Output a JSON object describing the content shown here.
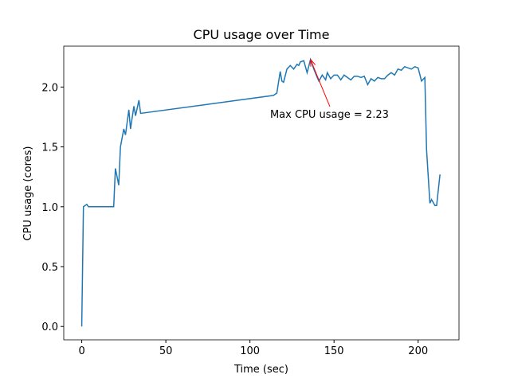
{
  "chart_data": {
    "type": "line",
    "title": "CPU usage over Time",
    "x_label": "Time (sec)",
    "y_label": "CPU usage (cores)",
    "x": [
      0,
      1,
      3,
      4,
      6,
      8,
      10,
      12,
      14,
      16,
      18,
      19,
      20,
      22,
      23,
      25,
      26,
      28,
      29,
      31,
      32,
      34,
      35,
      114,
      116,
      118,
      119,
      120,
      122,
      124,
      126,
      128,
      129,
      130,
      132,
      134,
      136,
      138,
      140,
      141,
      143,
      145,
      146,
      148,
      150,
      152,
      154,
      156,
      158,
      160,
      162,
      164,
      166,
      168,
      170,
      172,
      174,
      176,
      178,
      180,
      182,
      184,
      186,
      188,
      190,
      192,
      194,
      196,
      198,
      200,
      202,
      204,
      205,
      207,
      208,
      210,
      211,
      213
    ],
    "series": [
      {
        "color": "#1f77b4",
        "values": [
          0.0,
          1.0,
          1.02,
          1.0,
          1.0,
          1.0,
          1.0,
          1.0,
          1.0,
          1.0,
          1.0,
          1.0,
          1.32,
          1.18,
          1.5,
          1.65,
          1.6,
          1.81,
          1.65,
          1.84,
          1.76,
          1.89,
          1.78,
          1.93,
          1.95,
          2.13,
          2.05,
          2.04,
          2.15,
          2.18,
          2.15,
          2.19,
          2.18,
          2.21,
          2.22,
          2.12,
          2.23,
          2.15,
          2.08,
          2.05,
          2.1,
          2.06,
          2.12,
          2.07,
          2.1,
          2.1,
          2.06,
          2.1,
          2.08,
          2.06,
          2.09,
          2.09,
          2.08,
          2.09,
          2.02,
          2.07,
          2.05,
          2.08,
          2.07,
          2.07,
          2.1,
          2.12,
          2.1,
          2.15,
          2.14,
          2.17,
          2.16,
          2.15,
          2.17,
          2.16,
          2.05,
          2.08,
          1.48,
          1.03,
          1.06,
          1.01,
          1.01,
          1.27
        ]
      }
    ],
    "xlim": [
      -10.7,
      224.3
    ],
    "ylim": [
      -0.1115,
      2.3415
    ],
    "xticks": [
      0,
      50,
      100,
      150,
      200
    ],
    "yticks": [
      {
        "value": 0,
        "label": "0.0"
      },
      {
        "value": 0.5,
        "label": "0.5"
      },
      {
        "value": 1,
        "label": "1.0"
      },
      {
        "value": 1.5,
        "label": "1.5"
      },
      {
        "value": 2,
        "label": "2.0"
      }
    ],
    "annotation": {
      "text": "Max CPU usage = 2.23",
      "xy": [
        136,
        2.23
      ],
      "xytext": [
        112,
        1.73
      ],
      "color": "red"
    }
  }
}
